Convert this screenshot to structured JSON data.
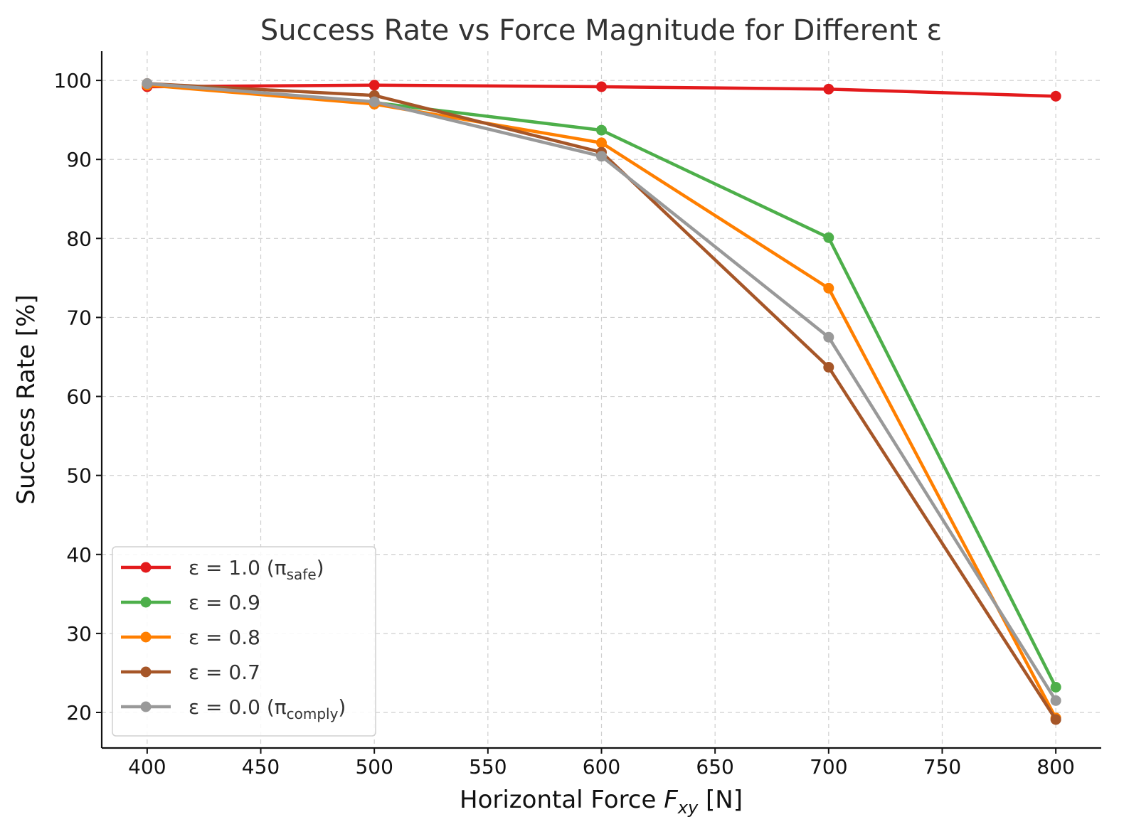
{
  "chart_data": {
    "type": "line",
    "title": "Success Rate vs Force Magnitude for Different ε",
    "xlabel": "Horizontal Force F_xy [N]",
    "xlabel_parts": {
      "prefix": "Horizontal Force ",
      "symbol": "F",
      "subscript": "xy",
      "suffix": " [N]"
    },
    "ylabel": "Success Rate [%]",
    "x": [
      400,
      500,
      600,
      700,
      800
    ],
    "xlim": [
      380,
      820
    ],
    "ylim": [
      15.5,
      103.7
    ],
    "xticks": [
      400,
      450,
      500,
      550,
      600,
      650,
      700,
      750,
      800
    ],
    "yticks": [
      20,
      30,
      40,
      50,
      60,
      70,
      80,
      90,
      100
    ],
    "grid": true,
    "legend_position": "lower-left",
    "series": [
      {
        "name": "ε = 1.0 (π_safe)",
        "label_main": "ε = 1.0 (π",
        "label_sub": "safe",
        "label_end": ")",
        "color": "#e31a1c",
        "values": [
          99.2,
          99.4,
          99.2,
          98.9,
          98.0
        ]
      },
      {
        "name": "ε = 0.9",
        "label_main": "ε = 0.9",
        "label_sub": "",
        "label_end": "",
        "color": "#4daf4a",
        "values": [
          99.5,
          97.2,
          93.7,
          80.1,
          23.2
        ]
      },
      {
        "name": "ε = 0.8",
        "label_main": "ε = 0.8",
        "label_sub": "",
        "label_end": "",
        "color": "#ff7f00",
        "values": [
          99.4,
          97.0,
          92.1,
          73.7,
          19.3
        ]
      },
      {
        "name": "ε = 0.7",
        "label_main": "ε = 0.7",
        "label_sub": "",
        "label_end": "",
        "color": "#a65628",
        "values": [
          99.6,
          98.1,
          90.9,
          63.7,
          19.1
        ]
      },
      {
        "name": "ε = 0.0 (π_comply)",
        "label_main": "ε = 0.0 (π",
        "label_sub": "comply",
        "label_end": ")",
        "color": "#999999",
        "values": [
          99.6,
          97.3,
          90.4,
          67.5,
          21.5
        ]
      }
    ]
  }
}
